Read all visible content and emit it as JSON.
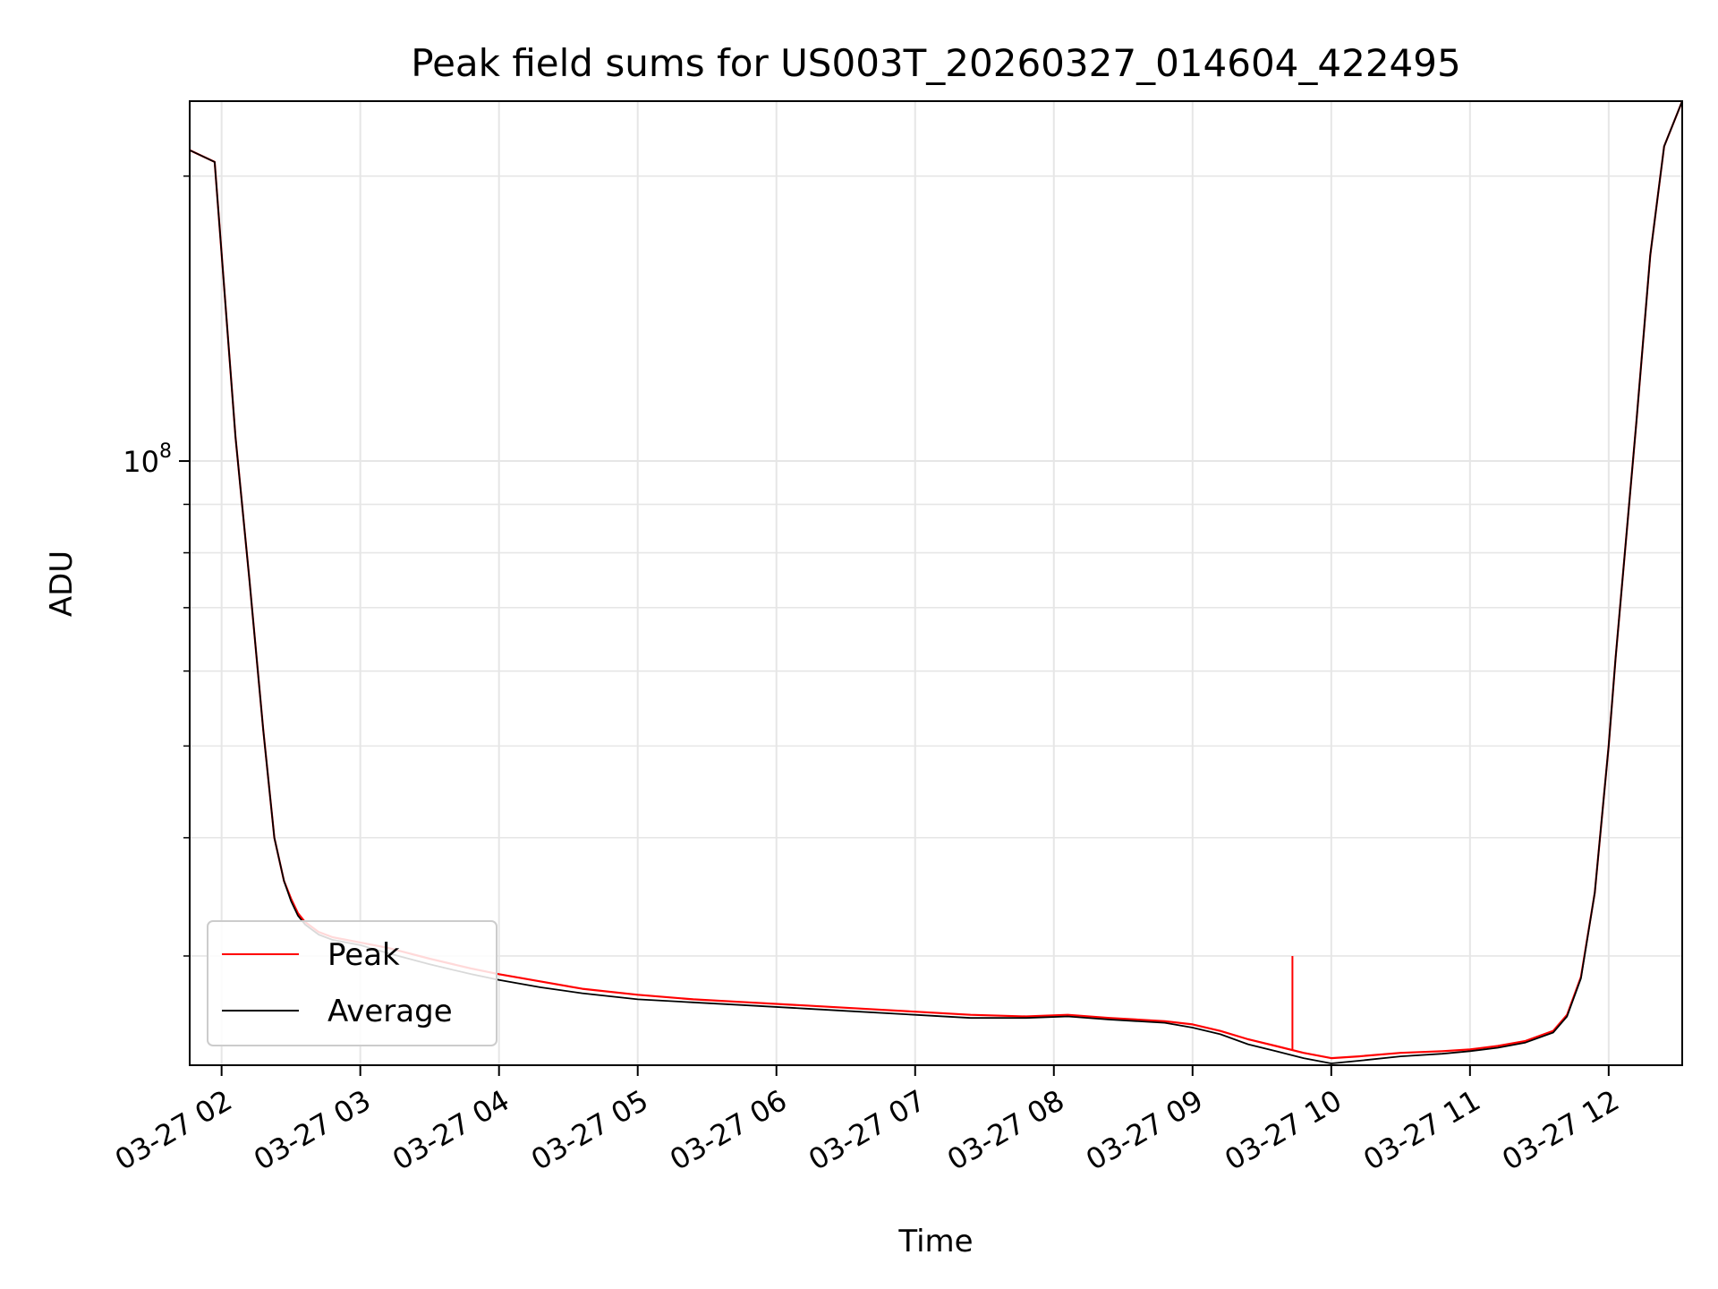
{
  "chart_data": {
    "type": "line",
    "title": "Peak field sums for US003T_20260327_014604_422495",
    "xlabel": "Time",
    "ylabel": "ADU",
    "yscale": "log",
    "ylim": [
      23000000,
      240000000
    ],
    "xlim_hours": [
      1.77,
      12.53
    ],
    "grid": true,
    "legend_position": "lower-left",
    "x_ticks": [
      {
        "label": "03-27 02",
        "hour": 2
      },
      {
        "label": "03-27 03",
        "hour": 3
      },
      {
        "label": "03-27 04",
        "hour": 4
      },
      {
        "label": "03-27 05",
        "hour": 5
      },
      {
        "label": "03-27 06",
        "hour": 6
      },
      {
        "label": "03-27 07",
        "hour": 7
      },
      {
        "label": "03-27 08",
        "hour": 8
      },
      {
        "label": "03-27 09",
        "hour": 9
      },
      {
        "label": "03-27 10",
        "hour": 10
      },
      {
        "label": "03-27 11",
        "hour": 11
      },
      {
        "label": "03-27 12",
        "hour": 12
      }
    ],
    "y_major_ticks": [
      {
        "base": "10",
        "exp": "8",
        "value": 100000000
      }
    ],
    "y_minor_ticks": [
      30000000,
      40000000,
      50000000,
      60000000,
      70000000,
      80000000,
      90000000,
      200000000
    ],
    "series": [
      {
        "name": "Peak",
        "color": "#ff0000",
        "x_hours": [
          1.77,
          1.95,
          2.1,
          2.2,
          2.3,
          2.38,
          2.45,
          2.5,
          2.55,
          2.6,
          2.7,
          2.8,
          3.0,
          3.2,
          3.5,
          3.8,
          4.0,
          4.3,
          4.6,
          5.0,
          5.4,
          5.8,
          6.2,
          6.6,
          7.0,
          7.4,
          7.8,
          8.1,
          8.4,
          8.8,
          9.0,
          9.2,
          9.4,
          9.6,
          9.8,
          10.0,
          10.2,
          10.5,
          10.8,
          11.0,
          11.2,
          11.4,
          11.6,
          11.7,
          11.8,
          11.9,
          12.0,
          12.05,
          12.1,
          12.2,
          12.3,
          12.4,
          12.53
        ],
        "values": [
          213000000,
          207000000,
          106000000,
          75000000,
          52000000,
          40000000,
          36000000,
          34500000,
          33300000,
          32600000,
          31800000,
          31400000,
          31000000,
          30600000,
          29800000,
          29100000,
          28700000,
          28200000,
          27700000,
          27300000,
          27000000,
          26800000,
          26600000,
          26400000,
          26200000,
          26000000,
          25900000,
          26000000,
          25800000,
          25600000,
          25400000,
          25000000,
          24500000,
          24100000,
          23700000,
          23400000,
          23500000,
          23700000,
          23800000,
          23900000,
          24100000,
          24400000,
          25000000,
          26000000,
          28500000,
          35000000,
          50000000,
          62000000,
          75000000,
          110000000,
          165000000,
          215000000,
          240000000
        ]
      },
      {
        "name": "Average",
        "color": "#000000",
        "x_hours": [
          1.77,
          1.95,
          2.1,
          2.2,
          2.3,
          2.38,
          2.45,
          2.5,
          2.55,
          2.6,
          2.7,
          2.8,
          3.0,
          3.2,
          3.5,
          3.8,
          4.0,
          4.3,
          4.6,
          5.0,
          5.4,
          5.8,
          6.2,
          6.6,
          7.0,
          7.4,
          7.8,
          8.1,
          8.4,
          8.8,
          9.0,
          9.2,
          9.4,
          9.6,
          9.8,
          10.0,
          10.2,
          10.5,
          10.8,
          11.0,
          11.2,
          11.4,
          11.6,
          11.7,
          11.8,
          11.9,
          12.0,
          12.05,
          12.1,
          12.2,
          12.3,
          12.4,
          12.53
        ],
        "values": [
          213000000,
          207000000,
          106000000,
          75000000,
          52000000,
          40000000,
          36000000,
          34300000,
          33100000,
          32400000,
          31600000,
          31200000,
          30800000,
          30200000,
          29400000,
          28700000,
          28300000,
          27800000,
          27400000,
          27000000,
          26800000,
          26600000,
          26400000,
          26200000,
          26000000,
          25800000,
          25800000,
          25900000,
          25700000,
          25500000,
          25200000,
          24800000,
          24200000,
          23800000,
          23400000,
          23100000,
          23250000,
          23500000,
          23650000,
          23800000,
          24000000,
          24300000,
          24900000,
          25900000,
          28400000,
          35000000,
          50000000,
          62000000,
          75000000,
          110000000,
          165000000,
          215000000,
          240000000
        ]
      }
    ],
    "annotations": [
      {
        "series": "Peak",
        "hour": 9.72,
        "value": 30000000,
        "note": "isolated spike"
      }
    ]
  }
}
